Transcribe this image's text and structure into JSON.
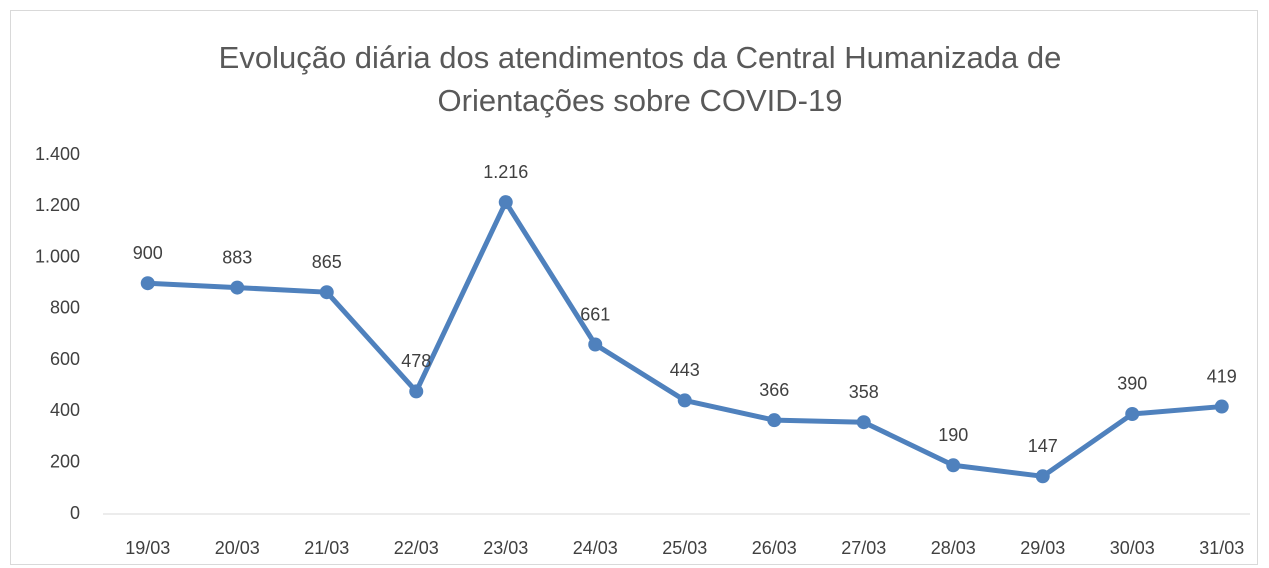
{
  "chart_data": {
    "type": "line",
    "title": [
      "Evolução diária dos atendimentos da Central Humanizada de",
      "Orientações sobre COVID-19"
    ],
    "categories": [
      "19/03",
      "20/03",
      "21/03",
      "22/03",
      "23/03",
      "24/03",
      "25/03",
      "26/03",
      "27/03",
      "28/03",
      "29/03",
      "30/03",
      "31/03"
    ],
    "series": [
      {
        "color": "#4f81bd",
        "values": [
          900,
          883,
          865,
          478,
          1216,
          661,
          443,
          366,
          358,
          190,
          147,
          390,
          419
        ],
        "value_labels": [
          "900",
          "883",
          "865",
          "478",
          "1.216",
          "661",
          "443",
          "366",
          "358",
          "190",
          "147",
          "390",
          "419"
        ]
      }
    ],
    "ylim": [
      0,
      1400
    ],
    "yticks": [
      0,
      200,
      400,
      600,
      800,
      {
        "value": 1000,
        "label": "1.000"
      },
      {
        "value": 1200,
        "label": "1.200"
      },
      {
        "value": 1400,
        "label": "1.400"
      }
    ],
    "grid": false
  }
}
